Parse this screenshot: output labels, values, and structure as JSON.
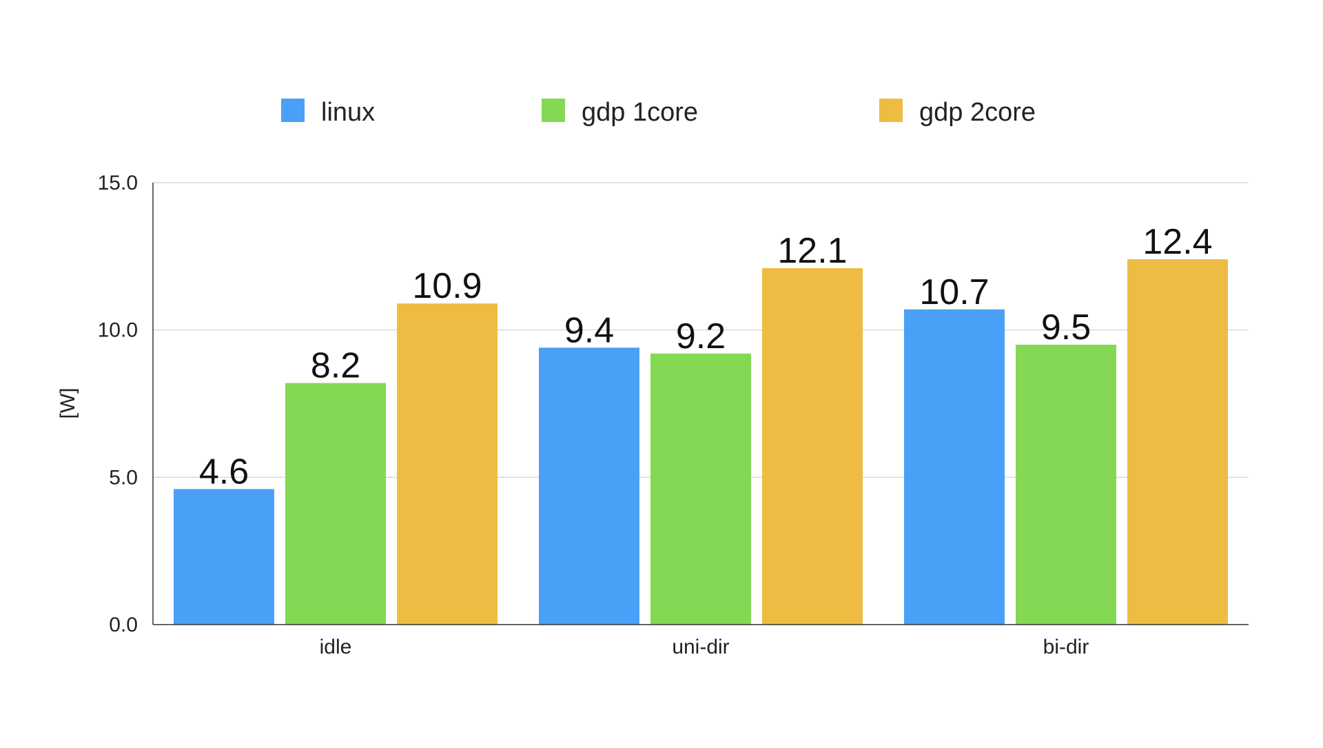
{
  "chart_data": {
    "type": "bar",
    "title": "",
    "xlabel": "",
    "ylabel": "[W]",
    "ylim": [
      0,
      15
    ],
    "yticks": [
      0,
      5,
      10,
      15
    ],
    "ytick_labels": [
      "0.0",
      "5.0",
      "10.0",
      "15.0"
    ],
    "grid": true,
    "legend_position": "top",
    "categories": [
      "idle",
      "uni-dir",
      "bi-dir"
    ],
    "series": [
      {
        "name": "linux",
        "color": "#4aa0f7",
        "values": [
          4.6,
          9.4,
          10.7
        ],
        "labels": [
          "4.6",
          "9.4",
          "10.7"
        ]
      },
      {
        "name": "gdp 1core",
        "color": "#84d854",
        "values": [
          8.2,
          9.2,
          9.5
        ],
        "labels": [
          "8.2",
          "9.2",
          "9.5"
        ]
      },
      {
        "name": "gdp 2core",
        "color": "#eebc42",
        "values": [
          10.9,
          12.1,
          12.4
        ],
        "labels": [
          "10.9",
          "12.1",
          "12.4"
        ]
      }
    ]
  }
}
